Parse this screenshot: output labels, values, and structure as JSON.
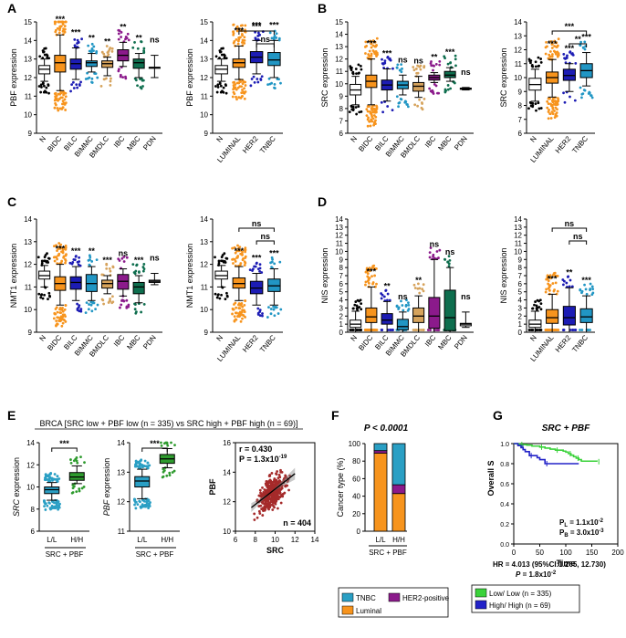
{
  "colors": {
    "N": "#ffffff",
    "BIDC": "#f7941d",
    "BILC": "#1c1cb4",
    "BIMMC": "#2196c4",
    "BMDLC": "#d6a35c",
    "IBC": "#8b1a8b",
    "MBC": "#0e6e4e",
    "PDN": "#ffffff",
    "LUMINAL": "#f7941d",
    "HER2": "#1c1cb4",
    "TNBC": "#2196c4",
    "LL": "#2a9fc4",
    "HH": "#2e9b2e",
    "scatter": "#a52a2a",
    "km_low": "#3ad23a",
    "km_high": "#2222c8",
    "legend_tnbc": "#2a9fc4",
    "legend_lum": "#f7941d",
    "legend_her2": "#8b1a8b"
  },
  "panel_labels": {
    "A": "A",
    "B": "B",
    "C": "C",
    "D": "D",
    "E": "E",
    "F": "F",
    "G": "G"
  },
  "chart_data": [
    {
      "id": "a1",
      "type": "boxplot",
      "panel": "A",
      "ylabel": "PBF expression",
      "ylim": [
        9,
        15
      ],
      "yticks": [
        9,
        10,
        11,
        12,
        13,
        14,
        15
      ],
      "categories": [
        "N",
        "BIDC",
        "BILC",
        "BIMMC",
        "BMDLC",
        "IBC",
        "MBC",
        "PDN"
      ],
      "boxes": [
        {
          "cat": "N",
          "q1": 12.2,
          "med": 12.45,
          "q3": 12.65,
          "lo": 11.8,
          "hi": 13.0
        },
        {
          "cat": "BIDC",
          "q1": 12.3,
          "med": 12.8,
          "q3": 13.2,
          "lo": 11.3,
          "hi": 14.3
        },
        {
          "cat": "BILC",
          "q1": 12.45,
          "med": 12.75,
          "q3": 13.0,
          "lo": 11.9,
          "hi": 13.6
        },
        {
          "cat": "BIMMC",
          "q1": 12.6,
          "med": 12.8,
          "q3": 12.9,
          "lo": 12.3,
          "hi": 13.3
        },
        {
          "cat": "BMDLC",
          "q1": 12.55,
          "med": 12.75,
          "q3": 12.9,
          "lo": 12.1,
          "hi": 13.1
        },
        {
          "cat": "IBC",
          "q1": 12.9,
          "med": 13.2,
          "q3": 13.5,
          "lo": 12.6,
          "hi": 13.9
        },
        {
          "cat": "MBC",
          "q1": 12.5,
          "med": 12.8,
          "q3": 13.0,
          "lo": 12.0,
          "hi": 13.3
        },
        {
          "cat": "PDN",
          "q1": 12.55,
          "med": 12.55,
          "q3": 12.55,
          "lo": 12.0,
          "hi": 13.2
        }
      ],
      "sig": [
        "***",
        "***",
        "**",
        "**",
        "**",
        "**",
        "ns"
      ]
    },
    {
      "id": "a2",
      "type": "boxplot",
      "panel": "A",
      "ylabel": "PBF expression",
      "ylim": [
        9,
        15
      ],
      "yticks": [
        9,
        10,
        11,
        12,
        13,
        14,
        15
      ],
      "categories": [
        "N",
        "LUMINAL",
        "HER2",
        "TNBC"
      ],
      "boxes": [
        {
          "cat": "N",
          "q1": 12.2,
          "med": 12.45,
          "q3": 12.65,
          "lo": 11.8,
          "hi": 13.0
        },
        {
          "cat": "LUMINAL",
          "q1": 12.55,
          "med": 12.8,
          "q3": 13.0,
          "lo": 11.9,
          "hi": 13.7
        },
        {
          "cat": "HER2",
          "q1": 12.8,
          "med": 13.1,
          "q3": 13.4,
          "lo": 12.2,
          "hi": 14.0
        },
        {
          "cat": "TNBC",
          "q1": 12.65,
          "med": 12.95,
          "q3": 13.35,
          "lo": 12.0,
          "hi": 14.0
        }
      ],
      "sig": [
        "***",
        "***",
        "***"
      ],
      "brackets": [
        {
          "from": "LUMINAL",
          "to": "TNBC",
          "label": "***"
        },
        {
          "from": "HER2",
          "to": "TNBC",
          "label": "ns"
        }
      ]
    },
    {
      "id": "b1",
      "type": "boxplot",
      "panel": "B",
      "ylabel": "SRC expression",
      "ylim": [
        6,
        15
      ],
      "yticks": [
        6,
        7,
        8,
        9,
        10,
        11,
        12,
        13,
        14,
        15
      ],
      "categories": [
        "N",
        "BIDC",
        "BILC",
        "BIMMC",
        "BMDLC",
        "IBC",
        "MBC",
        "PDN"
      ],
      "boxes": [
        {
          "cat": "N",
          "q1": 9.1,
          "med": 9.5,
          "q3": 9.95,
          "lo": 8.3,
          "hi": 10.6
        },
        {
          "cat": "BIDC",
          "q1": 9.7,
          "med": 10.2,
          "q3": 10.7,
          "lo": 8.3,
          "hi": 12.0
        },
        {
          "cat": "BILC",
          "q1": 9.5,
          "med": 9.9,
          "q3": 10.3,
          "lo": 8.6,
          "hi": 11.2
        },
        {
          "cat": "BIMMC",
          "q1": 9.6,
          "med": 9.9,
          "q3": 10.2,
          "lo": 9.1,
          "hi": 10.7
        },
        {
          "cat": "BMDLC",
          "q1": 9.4,
          "med": 9.8,
          "q3": 10.1,
          "lo": 8.9,
          "hi": 10.6
        },
        {
          "cat": "IBC",
          "q1": 10.3,
          "med": 10.5,
          "q3": 10.7,
          "lo": 10.1,
          "hi": 10.9
        },
        {
          "cat": "MBC",
          "q1": 10.5,
          "med": 10.7,
          "q3": 11.0,
          "lo": 10.2,
          "hi": 11.3
        },
        {
          "cat": "PDN",
          "q1": 9.55,
          "med": 9.6,
          "q3": 9.65,
          "lo": 9.5,
          "hi": 9.7
        }
      ],
      "sig": [
        "***",
        "***",
        "ns",
        "ns",
        "**",
        "***",
        "ns"
      ]
    },
    {
      "id": "b2",
      "type": "boxplot",
      "panel": "B",
      "ylabel": "SRC expression",
      "ylim": [
        6,
        14
      ],
      "yticks": [
        6,
        7,
        8,
        9,
        10,
        11,
        12,
        13,
        14
      ],
      "categories": [
        "N",
        "LUMINAL",
        "HER2",
        "TNBC"
      ],
      "boxes": [
        {
          "cat": "N",
          "q1": 9.1,
          "med": 9.5,
          "q3": 9.95,
          "lo": 8.3,
          "hi": 10.6
        },
        {
          "cat": "LUMINAL",
          "q1": 9.6,
          "med": 10.0,
          "q3": 10.4,
          "lo": 8.6,
          "hi": 11.3
        },
        {
          "cat": "HER2",
          "q1": 9.8,
          "med": 10.15,
          "q3": 10.6,
          "lo": 9.0,
          "hi": 11.0
        },
        {
          "cat": "TNBC",
          "q1": 10.0,
          "med": 10.5,
          "q3": 11.0,
          "lo": 9.4,
          "hi": 11.8
        }
      ],
      "sig": [
        "***",
        "***",
        "***"
      ],
      "brackets": [
        {
          "from": "LUMINAL",
          "to": "TNBC",
          "label": "***"
        },
        {
          "from": "HER2",
          "to": "TNBC",
          "label": "**"
        }
      ]
    },
    {
      "id": "c1",
      "type": "boxplot",
      "panel": "C",
      "ylabel": "NMT1 expression",
      "ylim": [
        9,
        14
      ],
      "yticks": [
        9,
        10,
        11,
        12,
        13,
        14
      ],
      "categories": [
        "N",
        "BIDC",
        "BILC",
        "BIMMC",
        "BMDLC",
        "IBC",
        "MBC",
        "PDN"
      ],
      "boxes": [
        {
          "cat": "N",
          "q1": 11.35,
          "med": 11.5,
          "q3": 11.7,
          "lo": 11.0,
          "hi": 11.95
        },
        {
          "cat": "BIDC",
          "q1": 10.85,
          "med": 11.15,
          "q3": 11.45,
          "lo": 10.2,
          "hi": 12.0
        },
        {
          "cat": "BILC",
          "q1": 10.9,
          "med": 11.2,
          "q3": 11.45,
          "lo": 10.4,
          "hi": 11.9
        },
        {
          "cat": "BIMMC",
          "q1": 10.8,
          "med": 11.15,
          "q3": 11.55,
          "lo": 10.4,
          "hi": 11.9
        },
        {
          "cat": "BMDLC",
          "q1": 10.95,
          "med": 11.15,
          "q3": 11.3,
          "lo": 10.7,
          "hi": 11.5
        },
        {
          "cat": "IBC",
          "q1": 10.9,
          "med": 11.25,
          "q3": 11.55,
          "lo": 10.6,
          "hi": 11.8
        },
        {
          "cat": "MBC",
          "q1": 10.7,
          "med": 11.0,
          "q3": 11.2,
          "lo": 10.3,
          "hi": 11.5
        },
        {
          "cat": "PDN",
          "q1": 11.2,
          "med": 11.25,
          "q3": 11.3,
          "lo": 11.1,
          "hi": 11.6
        }
      ],
      "sig": [
        "***",
        "***",
        "**",
        "***",
        "ns",
        "***",
        "ns"
      ]
    },
    {
      "id": "c2",
      "type": "boxplot",
      "panel": "C",
      "ylabel": "NMT1 expression",
      "ylim": [
        9,
        14
      ],
      "yticks": [
        9,
        10,
        11,
        12,
        13,
        14
      ],
      "categories": [
        "N",
        "LUMINAL",
        "HER2",
        "TNBC"
      ],
      "boxes": [
        {
          "cat": "N",
          "q1": 11.35,
          "med": 11.5,
          "q3": 11.7,
          "lo": 11.0,
          "hi": 11.95
        },
        {
          "cat": "LUMINAL",
          "q1": 10.95,
          "med": 11.15,
          "q3": 11.4,
          "lo": 10.4,
          "hi": 11.9
        },
        {
          "cat": "HER2",
          "q1": 10.7,
          "med": 10.95,
          "q3": 11.25,
          "lo": 10.2,
          "hi": 11.6
        },
        {
          "cat": "TNBC",
          "q1": 10.8,
          "med": 11.05,
          "q3": 11.35,
          "lo": 10.2,
          "hi": 11.8
        }
      ],
      "sig": [
        "***",
        "***",
        "***"
      ],
      "brackets": [
        {
          "from": "LUMINAL",
          "to": "TNBC",
          "label": "ns"
        },
        {
          "from": "HER2",
          "to": "TNBC",
          "label": "ns"
        }
      ]
    },
    {
      "id": "d1",
      "type": "boxplot",
      "panel": "D",
      "ylabel": "NIS expression",
      "ylim": [
        0,
        14
      ],
      "yticks": [
        0,
        1,
        2,
        3,
        4,
        5,
        6,
        7,
        8,
        9,
        10,
        11,
        12,
        13,
        14
      ],
      "categories": [
        "N",
        "BIDC",
        "BILC",
        "BIMMC",
        "BMDLC",
        "IBC",
        "MBC",
        "PDN"
      ],
      "boxes": [
        {
          "cat": "N",
          "q1": 0.6,
          "med": 1.0,
          "q3": 1.5,
          "lo": 0.0,
          "hi": 2.6
        },
        {
          "cat": "BIDC",
          "q1": 1.2,
          "med": 1.9,
          "q3": 3.0,
          "lo": 0.0,
          "hi": 5.6
        },
        {
          "cat": "BILC",
          "q1": 1.0,
          "med": 1.5,
          "q3": 2.3,
          "lo": 0.0,
          "hi": 3.8
        },
        {
          "cat": "BIMMC",
          "q1": 0.3,
          "med": 0.7,
          "q3": 1.6,
          "lo": 0.0,
          "hi": 2.5
        },
        {
          "cat": "BMDLC",
          "q1": 1.2,
          "med": 2.0,
          "q3": 3.0,
          "lo": 0.0,
          "hi": 4.5
        },
        {
          "cat": "IBC",
          "q1": 0.5,
          "med": 2.0,
          "q3": 4.3,
          "lo": 0.0,
          "hi": 9.0
        },
        {
          "cat": "MBC",
          "q1": 0.2,
          "med": 1.8,
          "q3": 5.2,
          "lo": 0.0,
          "hi": 8.0
        },
        {
          "cat": "PDN",
          "q1": 0.8,
          "med": 1.0,
          "q3": 1.1,
          "lo": 0.6,
          "hi": 2.5
        }
      ],
      "sig": [
        "***",
        "**",
        "ns",
        "**",
        "ns",
        "ns",
        "ns"
      ]
    },
    {
      "id": "d2",
      "type": "boxplot",
      "panel": "D",
      "ylabel": "NIS expression",
      "ylim": [
        0,
        14
      ],
      "yticks": [
        0,
        1,
        2,
        3,
        4,
        5,
        6,
        7,
        8,
        9,
        10,
        11,
        12,
        13,
        14
      ],
      "categories": [
        "N",
        "LUMINAL",
        "HER2",
        "TNBC"
      ],
      "boxes": [
        {
          "cat": "N",
          "q1": 0.6,
          "med": 1.0,
          "q3": 1.5,
          "lo": 0.0,
          "hi": 2.6
        },
        {
          "cat": "LUMINAL",
          "q1": 1.1,
          "med": 1.8,
          "q3": 2.8,
          "lo": 0.0,
          "hi": 4.7
        },
        {
          "cat": "HER2",
          "q1": 0.9,
          "med": 1.8,
          "q3": 3.2,
          "lo": 0.0,
          "hi": 5.5
        },
        {
          "cat": "TNBC",
          "q1": 1.2,
          "med": 1.9,
          "q3": 2.9,
          "lo": 0.0,
          "hi": 4.5
        }
      ],
      "sig": [
        "***",
        "**",
        "***"
      ],
      "brackets": [
        {
          "from": "LUMINAL",
          "to": "TNBC",
          "label": "ns"
        },
        {
          "from": "HER2",
          "to": "TNBC",
          "label": "ns"
        }
      ]
    },
    {
      "id": "e1",
      "type": "boxplot",
      "panel": "E",
      "ylabel": "SRC expression",
      "ylabel_italic": "SRC",
      "ylabel_rest": " expression",
      "ylim": [
        6,
        14
      ],
      "yticks": [
        6,
        8,
        10,
        12,
        14
      ],
      "categories": [
        "L/L",
        "H/H"
      ],
      "xlabel": "SRC + PBF",
      "boxes": [
        {
          "cat": "L/L",
          "q1": 9.4,
          "med": 9.75,
          "q3": 10.0,
          "lo": 8.8,
          "hi": 10.4
        },
        {
          "cat": "H/H",
          "q1": 10.6,
          "med": 10.9,
          "q3": 11.3,
          "lo": 10.3,
          "hi": 11.9
        }
      ],
      "sig": [],
      "brackets": [
        {
          "from": "L/L",
          "to": "H/H",
          "label": "***"
        }
      ]
    },
    {
      "id": "e2",
      "type": "boxplot",
      "panel": "E",
      "ylabel": "PBF expression",
      "ylabel_italic": "PBF",
      "ylabel_rest": " expression",
      "ylim": [
        11,
        14
      ],
      "yticks": [
        11,
        12,
        13,
        14
      ],
      "categories": [
        "L/L",
        "H/H"
      ],
      "xlabel": "SRC + PBF",
      "boxes": [
        {
          "cat": "L/L",
          "q1": 12.5,
          "med": 12.7,
          "q3": 12.85,
          "lo": 12.1,
          "hi": 13.1
        },
        {
          "cat": "H/H",
          "q1": 13.3,
          "med": 13.45,
          "q3": 13.6,
          "lo": 13.15,
          "hi": 13.8
        }
      ],
      "sig": [],
      "brackets": [
        {
          "from": "L/L",
          "to": "H/H",
          "label": "***"
        }
      ]
    },
    {
      "id": "e3",
      "type": "scatter",
      "panel": "E",
      "xlabel": "SRC",
      "ylabel": "PBF",
      "xlim": [
        6,
        14
      ],
      "ylim": [
        10,
        16
      ],
      "xticks": [
        6,
        8,
        10,
        12,
        14
      ],
      "yticks": [
        10,
        12,
        14,
        16
      ],
      "n_points": 404,
      "fit": {
        "x": [
          7.6,
          12.0
        ],
        "y": [
          11.6,
          13.9
        ]
      },
      "annotations": {
        "r": "r = 0.430",
        "p": "P = 1.3x10",
        "p_exp": "-19",
        "n": "n = 404"
      }
    },
    {
      "id": "f",
      "type": "stacked_bar",
      "panel": "F",
      "title": "P < 0.0001",
      "ylabel": "Cancer type (%)",
      "ylim": [
        0,
        100
      ],
      "yticks": [
        0,
        20,
        40,
        60,
        80,
        100
      ],
      "categories": [
        "L/L",
        "H/H"
      ],
      "xlabel": "SRC + PBF",
      "series": [
        {
          "name": "Luminal",
          "values": [
            89,
            43
          ]
        },
        {
          "name": "HER2-positive",
          "values": [
            3,
            10
          ]
        },
        {
          "name": "TNBC",
          "values": [
            8,
            47
          ]
        }
      ]
    },
    {
      "id": "g",
      "type": "line",
      "panel": "G",
      "title": "SRC + PBF",
      "ylabel": "Overall S",
      "xlabel": "Time",
      "xlim": [
        0,
        200
      ],
      "ylim": [
        0.0,
        1.0
      ],
      "xticks": [
        0,
        50,
        100,
        150,
        200
      ],
      "yticks": [
        0.0,
        0.2,
        0.4,
        0.6,
        0.8,
        1.0
      ],
      "series": [
        {
          "name": "Low/ Low (n = 335)",
          "x": [
            0,
            8,
            12,
            25,
            35,
            50,
            60,
            70,
            80,
            95,
            100,
            105,
            110,
            115,
            120,
            125,
            130,
            160
          ],
          "y": [
            1.0,
            0.995,
            0.99,
            0.985,
            0.975,
            0.965,
            0.955,
            0.945,
            0.935,
            0.925,
            0.915,
            0.9,
            0.885,
            0.87,
            0.855,
            0.84,
            0.825,
            0.82
          ]
        },
        {
          "name": "High/ High (n = 69)",
          "x": [
            0,
            8,
            14,
            18,
            22,
            30,
            45,
            50,
            60,
            115,
            125
          ],
          "y": [
            1.0,
            0.98,
            0.96,
            0.94,
            0.92,
            0.88,
            0.86,
            0.84,
            0.8,
            0.8,
            0.8
          ]
        }
      ],
      "annotations": {
        "pl": "P",
        "pl_sub": "L",
        "pl_val": " = 1.1x10",
        "pl_exp": "-2",
        "pb": "P",
        "pb_sub": "B",
        "pb_val": " = 3.0x10",
        "pb_exp": "-3",
        "hr": "HR = 4.013 (95%CI:1.265, 12.730)",
        "p": "P",
        "p_val": " = 1.8x10",
        "p_exp": "-2"
      }
    }
  ],
  "text": {
    "e_title": "BRCA [SRC low + PBF low (n = 335) vs SRC high + PBF high (n = 69)]",
    "legend_f": {
      "tnbc": "TNBC",
      "her2": "HER2-positive",
      "lum": "Luminal"
    },
    "legend_g": {
      "low": "Low/ Low (n = 335)",
      "high": "High/ High (n = 69)"
    }
  }
}
